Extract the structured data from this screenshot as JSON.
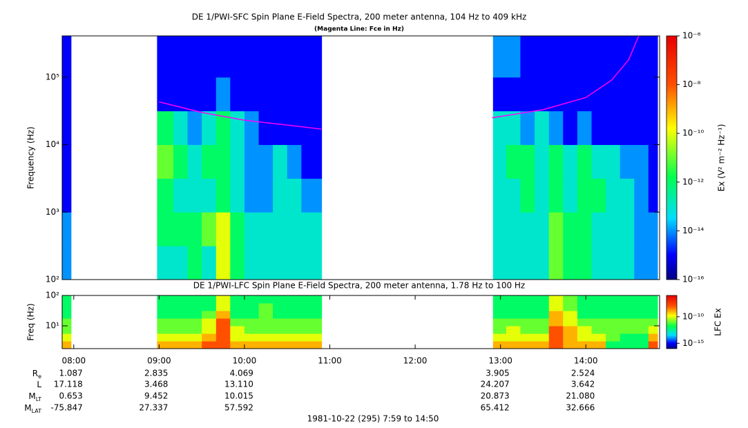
{
  "chart_data": [
    {
      "type": "spectrogram",
      "title": "DE 1/PWI-SFC  Spin Plane E-Field Spectra, 200 meter antenna, 104 Hz to 409 kHz",
      "subtitle": "(Magenta Line: Fce in Hz)",
      "ylabel": "Frequency (Hz)",
      "zlabel": "Ex (V² m⁻² Hz⁻¹)",
      "colormap": "rainbow",
      "xlim": [
        7.864,
        14.864
      ],
      "yscale": "log",
      "ylim": [
        100,
        409000
      ],
      "yticks": [
        {
          "value": 100,
          "label": "10²"
        },
        {
          "value": 1000,
          "label": "10³"
        },
        {
          "value": 10000,
          "label": "10⁴"
        },
        {
          "value": 100000,
          "label": "10⁵"
        }
      ],
      "zscale": "log",
      "zlim": [
        1e-16,
        1e-06
      ],
      "zticks": [
        {
          "value": 1e-06,
          "label": "10⁻⁶"
        },
        {
          "value": 1e-08,
          "label": "10⁻⁸"
        },
        {
          "value": 1e-10,
          "label": "10⁻¹⁰"
        },
        {
          "value": 1e-12,
          "label": "10⁻¹²"
        },
        {
          "value": 1e-14,
          "label": "10⁻¹⁴"
        },
        {
          "value": 1e-16,
          "label": "10⁻¹⁶"
        }
      ],
      "time_bins": [
        7.864,
        7.968,
        8.976,
        9.167,
        9.333,
        9.5,
        9.667,
        9.833,
        10.0,
        10.167,
        10.333,
        10.5,
        10.667,
        10.904,
        12.912,
        13.067,
        13.233,
        13.4,
        13.567,
        13.733,
        13.9,
        14.067,
        14.233,
        14.4,
        14.567,
        14.733,
        14.84
      ],
      "freq_bins": [
        100,
        316,
        1000,
        3162,
        10000,
        31623,
        100000,
        409000
      ],
      "z": [
        [
          1e-14,
          null,
          1e-13,
          1e-13,
          1e-12,
          1e-13,
          1e-10,
          1e-12,
          1e-13,
          1e-13,
          1e-13,
          1e-13,
          1e-13,
          null,
          1e-13,
          1e-13,
          1e-13,
          1e-13,
          1e-11,
          1e-12,
          1e-12,
          1e-13,
          1e-13,
          1e-13,
          1e-14,
          1e-14
        ],
        [
          1e-14,
          null,
          1e-12,
          1e-12,
          1e-12,
          1e-11,
          1e-10,
          1e-12,
          1e-13,
          1e-13,
          1e-13,
          1e-13,
          1e-13,
          null,
          1e-13,
          1e-13,
          1e-13,
          1e-13,
          1e-11,
          1e-12,
          1e-12,
          1e-13,
          1e-13,
          1e-13,
          1e-14,
          1e-14
        ],
        [
          1e-15,
          null,
          1e-12,
          1e-13,
          1e-13,
          1e-13,
          1e-12,
          1e-13,
          1e-14,
          1e-14,
          1e-13,
          1e-13,
          1e-14,
          null,
          1e-13,
          1e-13,
          1e-12,
          1e-13,
          1e-12,
          1e-13,
          1e-12,
          1e-12,
          1e-13,
          1e-13,
          1e-14,
          1e-15
        ],
        [
          1e-15,
          null,
          1e-11,
          1e-12,
          1e-13,
          1e-12,
          1e-12,
          1e-13,
          1e-14,
          1e-14,
          1e-13,
          1e-14,
          1e-15,
          null,
          1e-13,
          1e-12,
          1e-12,
          1e-13,
          1e-12,
          1e-13,
          1e-12,
          1e-13,
          1e-13,
          1e-14,
          1e-14,
          1e-15
        ],
        [
          1e-15,
          null,
          1e-12,
          1e-13,
          1e-14,
          1e-13,
          1e-12,
          1e-13,
          1e-14,
          1e-15,
          1e-15,
          1e-15,
          1e-15,
          null,
          1e-13,
          1e-13,
          1e-14,
          1e-13,
          1e-14,
          1e-15,
          1e-14,
          1e-15,
          1e-15,
          1e-15,
          1e-15,
          1e-15
        ],
        [
          1e-15,
          null,
          1e-15,
          1e-15,
          1e-15,
          1e-15,
          1e-14,
          1e-15,
          1e-15,
          1e-15,
          1e-15,
          1e-15,
          1e-15,
          null,
          1e-15,
          1e-15,
          1e-15,
          1e-15,
          1e-15,
          1e-15,
          1e-15,
          1e-15,
          1e-15,
          1e-15,
          1e-15,
          1e-15
        ],
        [
          1e-15,
          null,
          1e-15,
          1e-15,
          1e-15,
          1e-15,
          1e-15,
          1e-15,
          1e-15,
          1e-15,
          1e-15,
          1e-15,
          1e-15,
          null,
          1e-14,
          1e-14,
          1e-15,
          1e-15,
          1e-15,
          1e-15,
          1e-15,
          1e-15,
          1e-15,
          1e-15,
          1e-15,
          1e-15
        ]
      ],
      "series": [
        {
          "name": "Fce",
          "color": "#ff00ff",
          "x": [
            9.0,
            9.5,
            10.0,
            10.5,
            10.9,
            11.9,
            12.9,
            13.5,
            14.0,
            14.3,
            14.5,
            14.62
          ],
          "values": [
            43000,
            30000,
            23000,
            19500,
            17000,
            null,
            25000,
            33000,
            50000,
            90000,
            180000,
            409000
          ]
        }
      ]
    },
    {
      "type": "spectrogram",
      "title": "DE 1/PWI-LFC  Spin Plane E-Field Spectra, 200 meter antenna, 1.78 Hz to 100 Hz",
      "ylabel": "Freq (Hz)",
      "zlabel": "LFC Ex",
      "colormap": "rainbow",
      "xlim": [
        7.864,
        14.864
      ],
      "xticks": [
        {
          "value": 8,
          "label": "08:00"
        },
        {
          "value": 9,
          "label": "09:00"
        },
        {
          "value": 10,
          "label": "10:00"
        },
        {
          "value": 11,
          "label": "11:00"
        },
        {
          "value": 12,
          "label": "12:00"
        },
        {
          "value": 13,
          "label": "13:00"
        },
        {
          "value": 14,
          "label": "14:00"
        }
      ],
      "yscale": "log",
      "ylim": [
        1.78,
        100
      ],
      "yticks": [
        {
          "value": 10,
          "label": "10¹"
        },
        {
          "value": 100,
          "label": "10²"
        }
      ],
      "zscale": "log",
      "zlim": [
        1e-16,
        1e-06
      ],
      "zticks": [
        {
          "value": 1e-10,
          "label": "10⁻¹⁰"
        },
        {
          "value": 1e-15,
          "label": "10⁻¹⁵"
        }
      ],
      "time_bins": [
        7.864,
        7.968,
        8.976,
        9.167,
        9.333,
        9.5,
        9.667,
        9.833,
        10.0,
        10.167,
        10.333,
        10.5,
        10.667,
        10.904,
        12.912,
        13.067,
        13.233,
        13.4,
        13.567,
        13.733,
        13.9,
        14.067,
        14.233,
        14.4,
        14.567,
        14.733,
        14.84
      ],
      "freq_bins": [
        1.78,
        3.16,
        5.62,
        10,
        17.8,
        31.6,
        56.2,
        100
      ],
      "z": [
        [
          1e-09,
          null,
          1e-09,
          1e-09,
          1e-09,
          1e-08,
          1e-08,
          1e-09,
          1e-09,
          1e-09,
          1e-09,
          1e-09,
          1e-09,
          null,
          1e-09,
          1e-09,
          1e-09,
          1e-09,
          1e-08,
          1e-09,
          1e-09,
          1e-09,
          1e-12,
          1e-12,
          1e-12,
          1e-08
        ],
        [
          1e-10,
          null,
          1e-10,
          1e-10,
          1e-10,
          1e-09,
          1e-08,
          1e-10,
          1e-10,
          1e-10,
          1e-10,
          1e-10,
          1e-10,
          null,
          1e-10,
          1e-10,
          1e-10,
          1e-10,
          1e-08,
          1e-09,
          1e-10,
          1e-10,
          1e-11,
          1e-12,
          1e-12,
          1e-09
        ],
        [
          1e-11,
          null,
          1e-11,
          1e-11,
          1e-11,
          1e-10,
          1e-08,
          1e-10,
          1e-11,
          1e-11,
          1e-11,
          1e-11,
          1e-11,
          null,
          1e-11,
          1e-10,
          1e-11,
          1e-11,
          1e-08,
          1e-09,
          1e-10,
          1e-11,
          1e-11,
          1e-11,
          1e-11,
          1e-10
        ],
        [
          1e-11,
          null,
          1e-11,
          1e-11,
          1e-11,
          1e-10,
          1e-08,
          1e-11,
          1e-11,
          1e-11,
          1e-11,
          1e-11,
          1e-11,
          null,
          1e-11,
          1e-11,
          1e-11,
          1e-11,
          1e-09,
          1e-10,
          1e-11,
          1e-11,
          1e-11,
          1e-11,
          1e-11,
          1e-11
        ],
        [
          1e-12,
          null,
          1e-12,
          1e-12,
          1e-12,
          1e-11,
          1e-09,
          1e-12,
          1e-12,
          1e-11,
          1e-12,
          1e-12,
          1e-12,
          null,
          1e-12,
          1e-12,
          1e-12,
          1e-12,
          1e-09,
          1e-10,
          1e-12,
          1e-12,
          1e-12,
          1e-12,
          1e-12,
          1e-12
        ],
        [
          1e-12,
          null,
          1e-12,
          1e-12,
          1e-12,
          1e-12,
          1e-10,
          1e-12,
          1e-12,
          1e-11,
          1e-12,
          1e-12,
          1e-12,
          null,
          1e-12,
          1e-12,
          1e-12,
          1e-12,
          1e-10,
          1e-11,
          1e-12,
          1e-12,
          1e-12,
          1e-12,
          1e-12,
          1e-12
        ],
        [
          1e-12,
          null,
          1e-12,
          1e-12,
          1e-12,
          1e-12,
          1e-10,
          1e-12,
          1e-12,
          1e-12,
          1e-12,
          1e-12,
          1e-12,
          null,
          1e-12,
          1e-12,
          1e-12,
          1e-12,
          1e-10,
          1e-11,
          1e-12,
          1e-12,
          1e-12,
          1e-12,
          1e-12,
          1e-12
        ]
      ]
    }
  ],
  "ephemeris": {
    "rows": [
      {
        "label": "R",
        "sub": "e",
        "values": [
          "1.087",
          "2.835",
          "4.069",
          null,
          null,
          "3.905",
          "2.524"
        ]
      },
      {
        "label": "L",
        "values": [
          "17.118",
          "3.468",
          "13.110",
          null,
          null,
          "24.207",
          "3.642"
        ]
      },
      {
        "label": "M",
        "sub": "LT",
        "values": [
          "0.653",
          "9.452",
          "10.015",
          null,
          null,
          "20.873",
          "21.080"
        ]
      },
      {
        "label": "M",
        "sub": "LAT",
        "values": [
          "-75.847",
          "27.337",
          "57.592",
          null,
          null,
          "65.412",
          "32.666"
        ]
      }
    ]
  },
  "footer": "1981-10-22 (295) 7:59 to 14:50"
}
